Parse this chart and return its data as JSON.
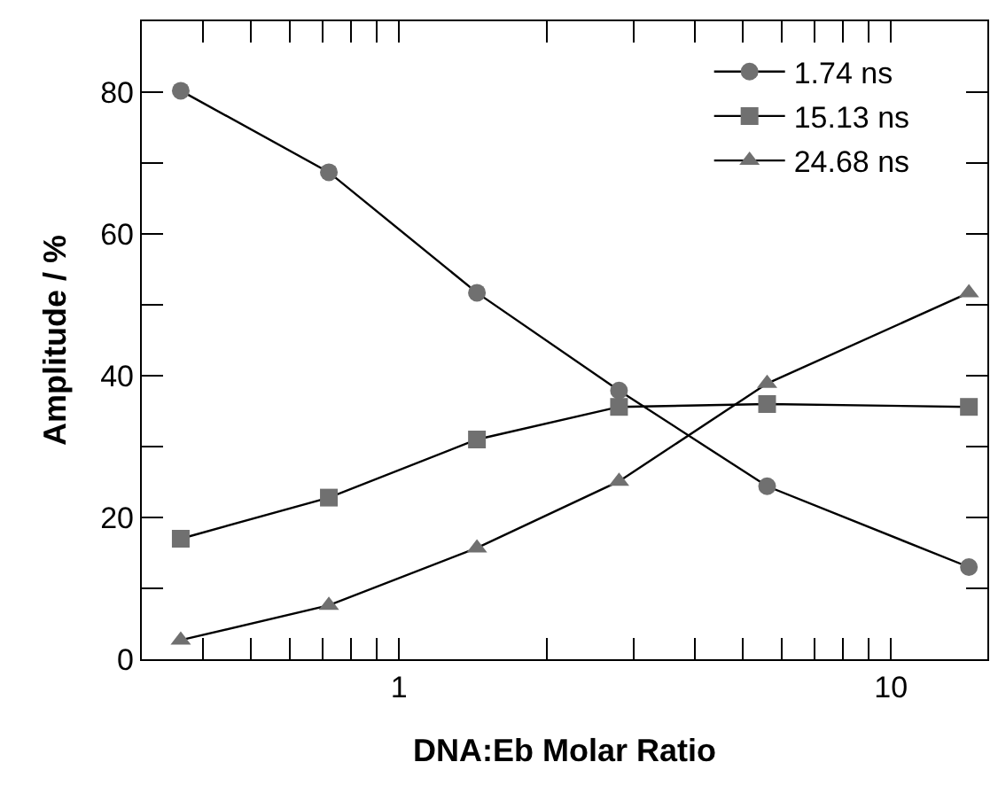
{
  "chart_data": {
    "type": "line",
    "xlabel": "DNA:Eb Molar Ratio",
    "ylabel": "Amplitude / %",
    "log": "x",
    "x": [
      0.36,
      0.72,
      1.44,
      2.8,
      5.6,
      14.4
    ],
    "xlim": [
      0.3,
      15.7
    ],
    "ylim": [
      0,
      90
    ],
    "xticks": [
      {
        "value": 0.3,
        "label": null
      },
      {
        "value": 0.4,
        "label": null
      },
      {
        "value": 0.5,
        "label": null
      },
      {
        "value": 0.6,
        "label": null
      },
      {
        "value": 0.7,
        "label": null
      },
      {
        "value": 0.8,
        "label": null
      },
      {
        "value": 0.9,
        "label": null
      },
      1,
      {
        "value": 2,
        "label": null
      },
      {
        "value": 3,
        "label": null
      },
      {
        "value": 4,
        "label": null
      },
      {
        "value": 5,
        "label": null
      },
      {
        "value": 6,
        "label": null
      },
      {
        "value": 7,
        "label": null
      },
      {
        "value": 8,
        "label": null
      },
      {
        "value": 9,
        "label": null
      },
      10
    ],
    "yticks": [
      0,
      {
        "value": 10,
        "label": null
      },
      20,
      {
        "value": 30,
        "label": null
      },
      40,
      {
        "value": 50,
        "label": null
      },
      60,
      {
        "value": 70,
        "label": null
      },
      80
    ],
    "legend": "top right",
    "line_style": "solid",
    "series": [
      {
        "name": "1.74 ns",
        "color": "#707070",
        "marker": "circle",
        "values": [
          80.2,
          68.7,
          51.7,
          37.9,
          24.4,
          13.0
        ]
      },
      {
        "name": "15.13 ns",
        "color": "#707070",
        "marker": "square",
        "values": [
          17.0,
          22.8,
          31.0,
          35.6,
          36.0,
          35.6
        ]
      },
      {
        "name": "24.68 ns",
        "color": "#707070",
        "marker": "triangle",
        "values": [
          2.7,
          7.6,
          15.7,
          25.1,
          38.9,
          51.7
        ]
      }
    ]
  }
}
